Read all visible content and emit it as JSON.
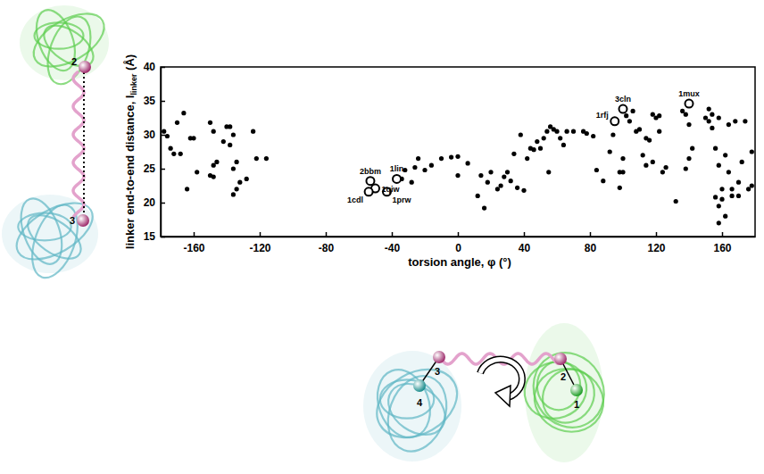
{
  "chart_data": {
    "type": "scatter",
    "x_label": "torsion angle, φ (°)",
    "y_label": [
      "linker end-to-end distance, l",
      "linker",
      " (Å)"
    ],
    "xlim": [
      -180,
      180
    ],
    "xticks": [
      -160,
      -120,
      -80,
      -40,
      0,
      40,
      80,
      120,
      160
    ],
    "ylim": [
      15,
      40
    ],
    "yticks": [
      15,
      20,
      25,
      30,
      35,
      40
    ],
    "grid": false,
    "color": "#000000",
    "marker": "circle",
    "x": [
      -178,
      -176,
      -174,
      -172,
      -170,
      -168,
      -166,
      -164,
      -162,
      -160,
      -158,
      -150,
      -148,
      -146,
      -148,
      -150,
      -148,
      -142,
      -140,
      -138,
      -136,
      -138,
      -136,
      -134,
      -132,
      -134,
      -136,
      -128,
      -124,
      -122,
      -116,
      -34,
      -32,
      -28,
      -26,
      -24,
      -20,
      -16,
      -10,
      -4,
      0,
      0,
      6,
      12,
      14,
      16,
      18,
      20,
      24,
      26,
      28,
      30,
      32,
      34,
      36,
      38,
      40,
      42,
      44,
      46,
      48,
      50,
      52,
      54,
      55,
      56,
      58,
      60,
      62,
      64,
      66,
      70,
      76,
      78,
      82,
      84,
      88,
      92,
      94,
      96,
      98,
      98,
      100,
      100,
      102,
      104,
      106,
      108,
      110,
      112,
      114,
      114,
      116,
      118,
      118,
      120,
      122,
      122,
      124,
      126,
      132,
      136,
      138,
      138,
      140,
      140,
      142,
      150,
      152,
      152,
      154,
      154,
      156,
      156,
      158,
      158,
      158,
      160,
      158,
      160,
      162,
      162,
      164,
      164,
      166,
      166,
      168,
      170,
      170,
      172,
      174,
      176,
      178,
      178
    ],
    "values": [
      30.5,
      29.8,
      28,
      27.2,
      31.8,
      27.2,
      33.2,
      22,
      29.5,
      29.5,
      24.5,
      31.8,
      30.5,
      26,
      25.5,
      24,
      23.8,
      29,
      31.2,
      31.2,
      30,
      28.5,
      25,
      26,
      23,
      22,
      21.2,
      23.5,
      30.5,
      26.5,
      26.5,
      23.5,
      24.8,
      23,
      25.2,
      26.5,
      24.8,
      25.5,
      26.5,
      26.7,
      26.8,
      24,
      25.8,
      21,
      24,
      19.2,
      23,
      24.5,
      22,
      22.5,
      23.8,
      24.5,
      23.2,
      27.2,
      22.2,
      30,
      21.8,
      26.5,
      28,
      27.8,
      29,
      28,
      29.5,
      30.5,
      24.5,
      31.2,
      30.8,
      30.5,
      29.5,
      28.5,
      30.5,
      30.5,
      30.5,
      30.2,
      29.8,
      24.8,
      23.2,
      27.5,
      30,
      32.2,
      24.5,
      22.2,
      24.5,
      26.5,
      32.8,
      32,
      33.5,
      30.5,
      30.8,
      27,
      29.5,
      25.5,
      29.2,
      33,
      26,
      32.5,
      32.8,
      30.5,
      24.5,
      25.2,
      20.2,
      33.5,
      33,
      25,
      31.5,
      26.5,
      28,
      32.5,
      33.8,
      32,
      33,
      31,
      20.8,
      28,
      32.5,
      25.5,
      19.5,
      20.5,
      17,
      22,
      18,
      27,
      31.5,
      24.5,
      21,
      22,
      32,
      21,
      23,
      26,
      32,
      22,
      22.5,
      27.5
    ],
    "highlight": {
      "marker": "open-circle",
      "labels": [
        "2bbm",
        "1qiw",
        "1cdl",
        "1prw",
        "1lin",
        "1rfj",
        "3cln",
        "1mux"
      ],
      "x": [
        -53,
        -50,
        -54,
        -43,
        -37,
        95,
        100,
        140
      ],
      "values": [
        23.2,
        22.1,
        21.6,
        21.6,
        23.5,
        32,
        33.8,
        34.6
      ]
    },
    "diagram_labels": {
      "side": [
        "2",
        "3"
      ],
      "bottom": [
        "1",
        "2",
        "3",
        "4"
      ]
    }
  }
}
